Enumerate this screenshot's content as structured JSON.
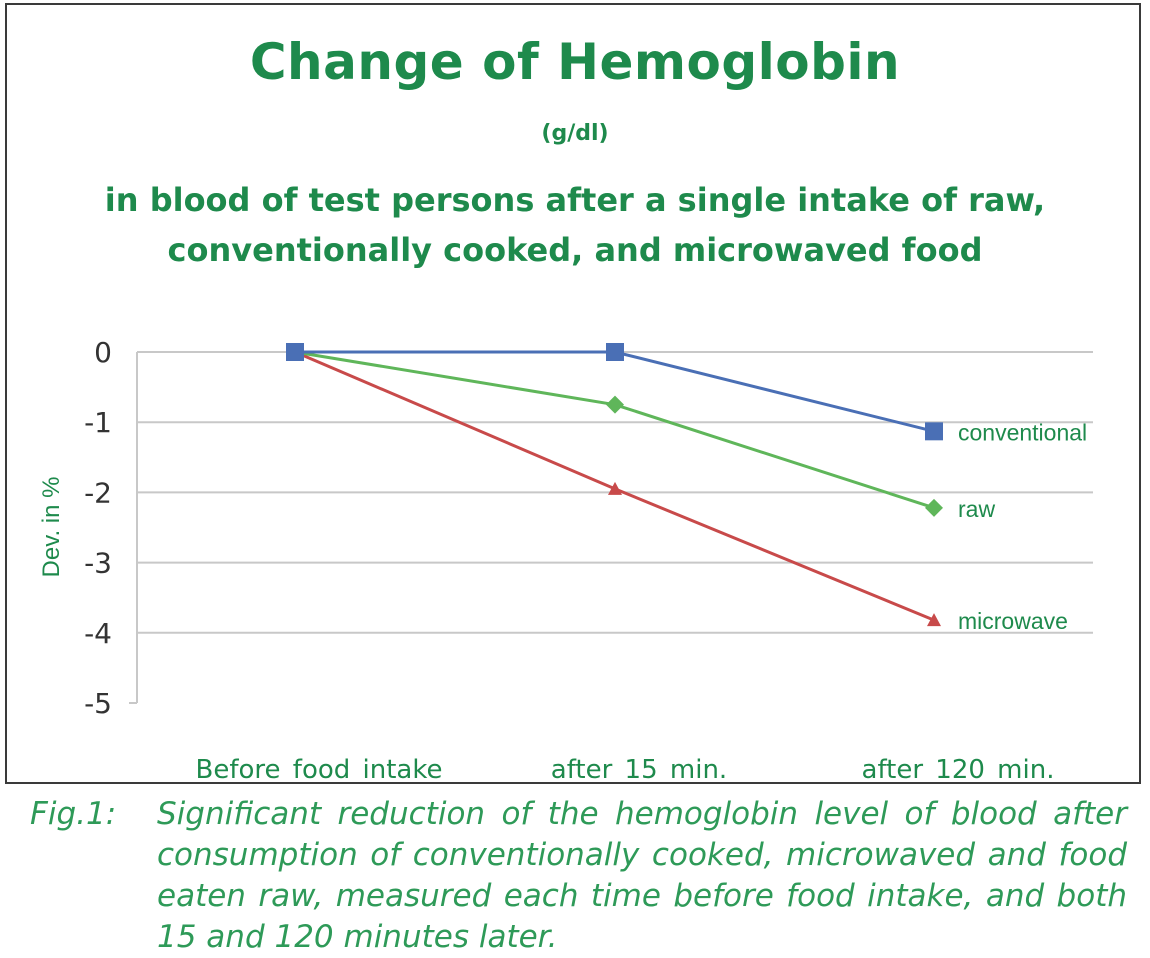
{
  "title": "Change of Hemoglobin",
  "unit": "(g/dl)",
  "subtitle_lines": [
    "in blood of test persons after a single intake of raw,",
    "conventionally cooked, and microwaved food"
  ],
  "caption": {
    "label": "Fig.1:",
    "text": "Significant reduction of the hemoglobin level of blood after consumption of conventionally cooked, microwaved and food eaten raw, measured each time before food intake, and both 15 and 120 minutes later."
  },
  "colors": {
    "title": "#1e8a4c",
    "gridline": "#c8c8c8",
    "conventional": "#4a6fb5",
    "raw": "#5fb65a",
    "microwave": "#c84a4a"
  },
  "chart_data": {
    "type": "line",
    "title": "Change of Hemoglobin",
    "ylabel": "Dev. in %",
    "xlabel": "",
    "ylim": [
      -5,
      0
    ],
    "yticks": [
      0,
      -1,
      -2,
      -3,
      -4,
      -5
    ],
    "categories": [
      "Before food intake",
      "after 15 min.",
      "after 120 min."
    ],
    "grid": true,
    "series": [
      {
        "name": "conventional",
        "marker": "square",
        "values": [
          0,
          0,
          -1.13
        ]
      },
      {
        "name": "raw",
        "marker": "diamond",
        "values": [
          0,
          -0.75,
          -2.22
        ]
      },
      {
        "name": "microwave",
        "marker": "triangle",
        "values": [
          0,
          -1.95,
          -3.82
        ]
      }
    ]
  }
}
